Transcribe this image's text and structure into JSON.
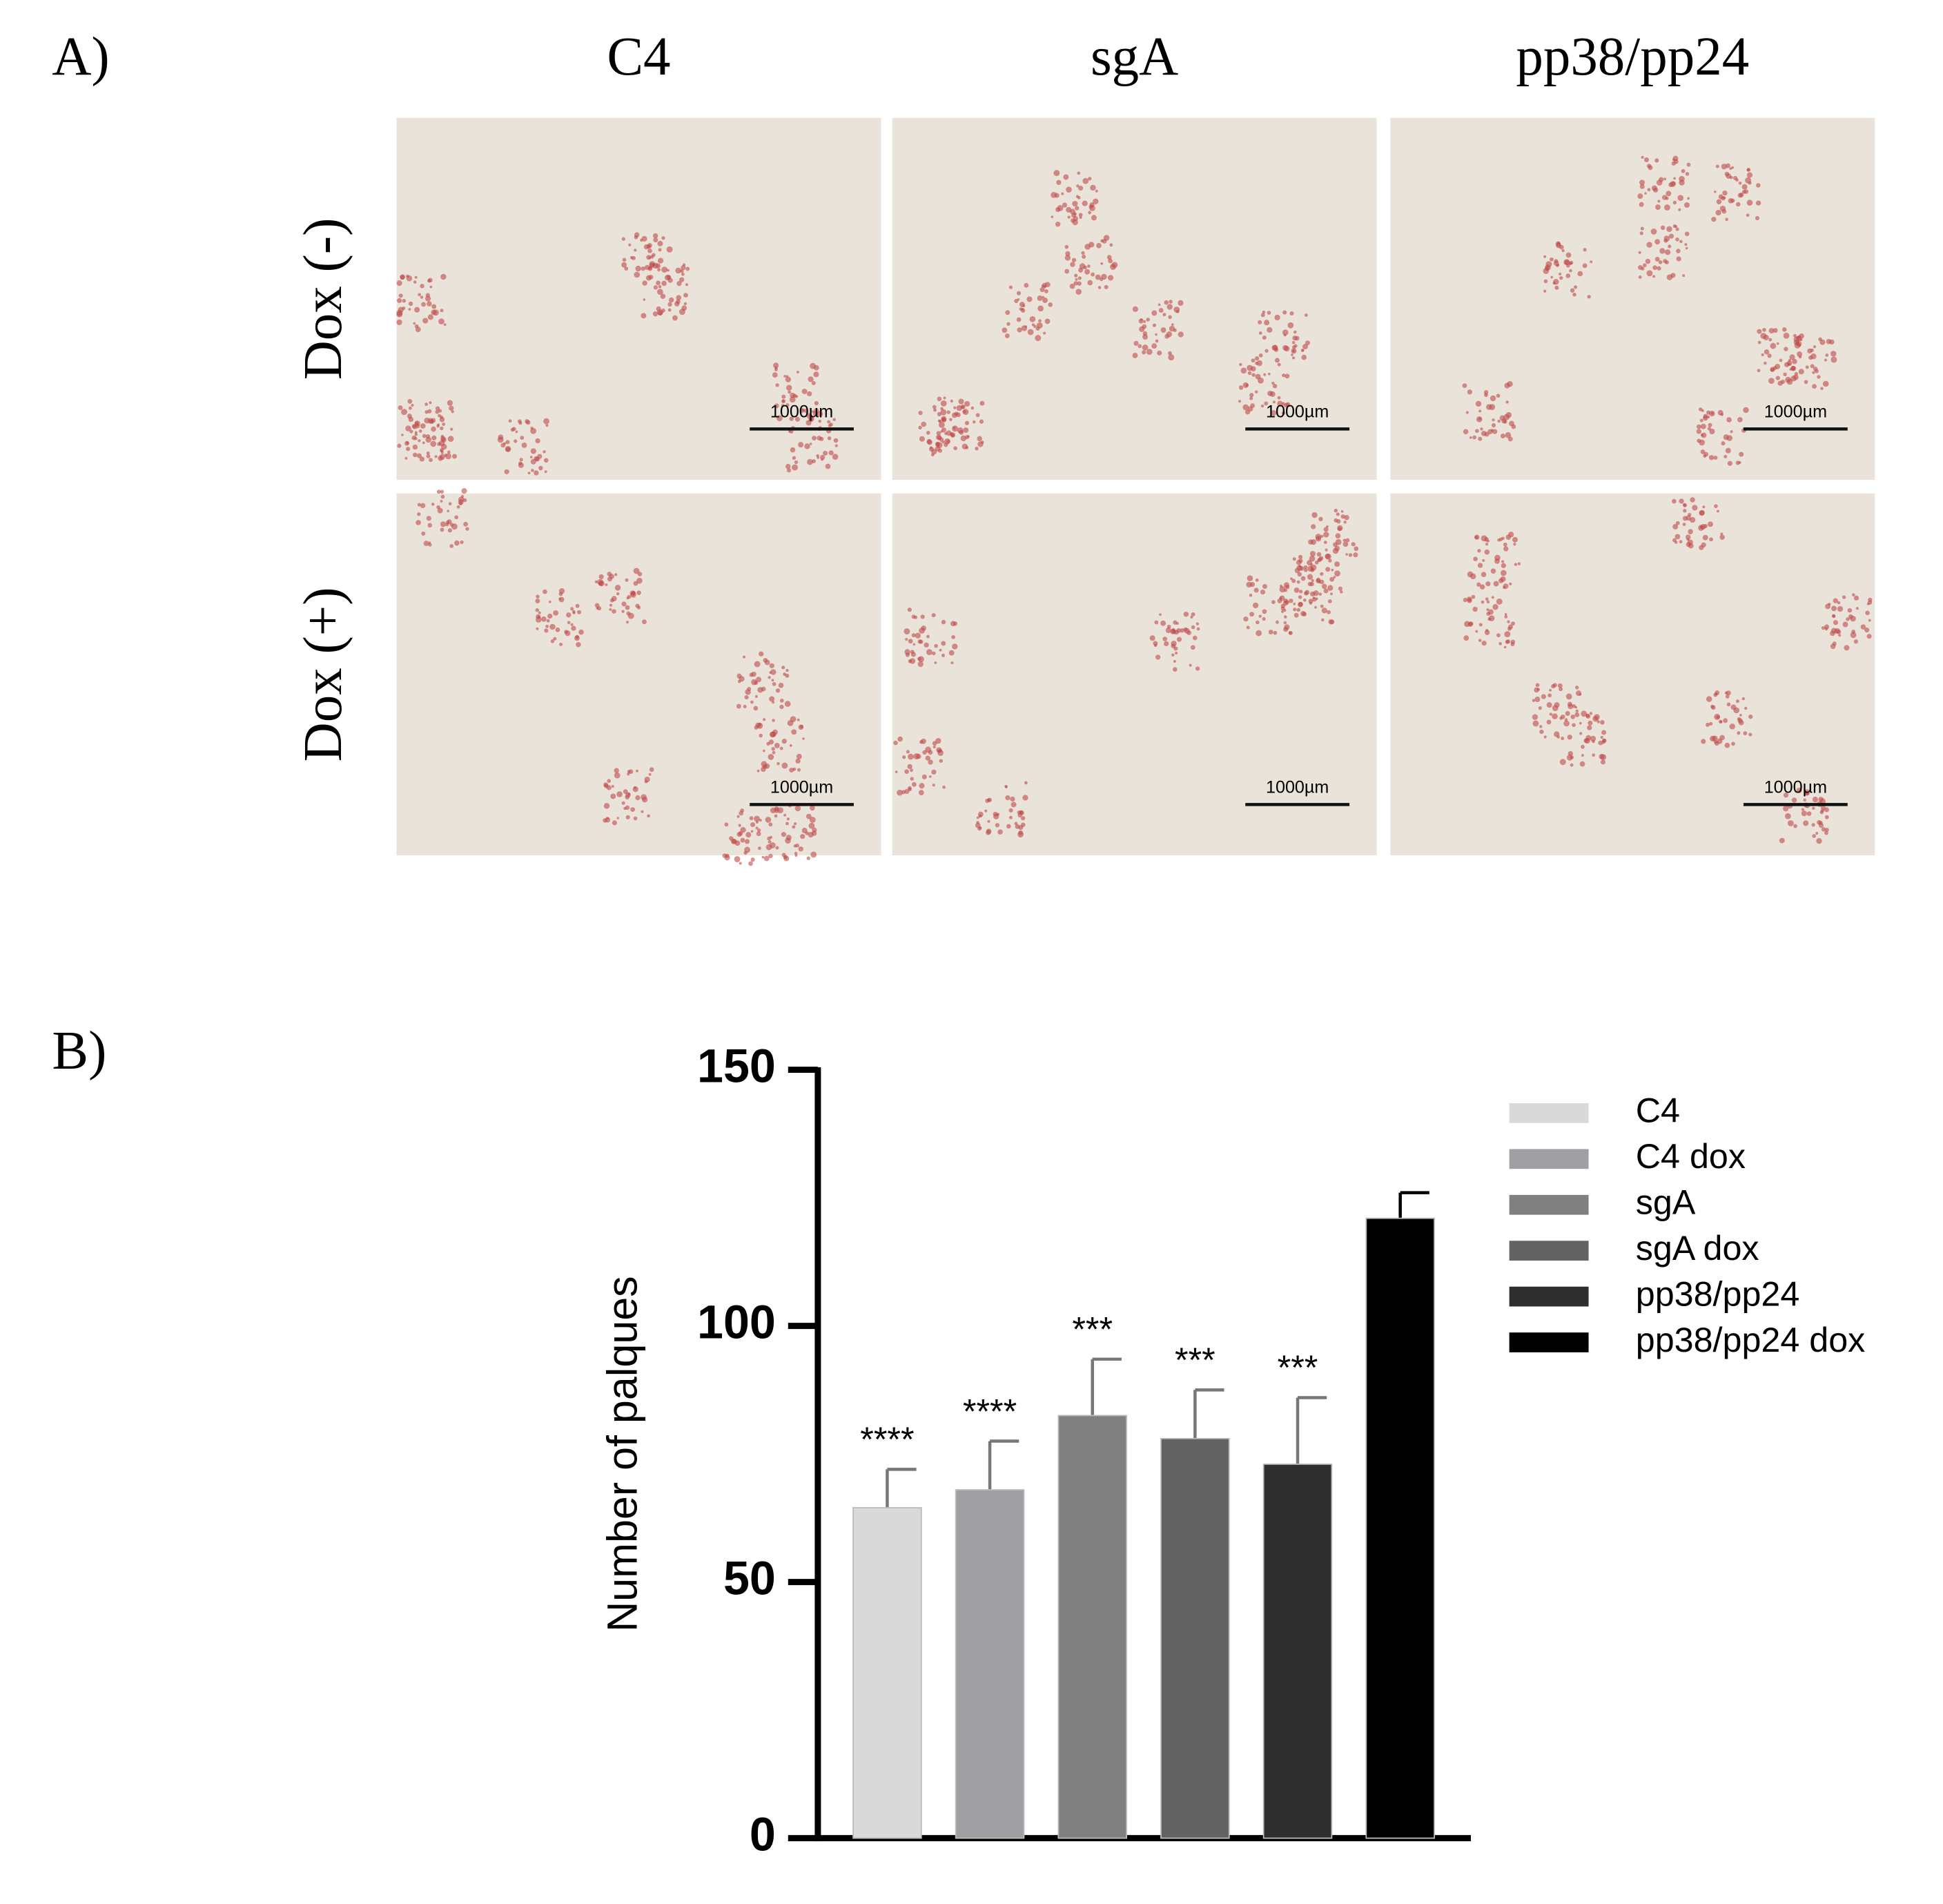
{
  "panel_a": {
    "label": "A)",
    "columns": [
      "C4",
      "sgA",
      "pp38/pp24"
    ],
    "rows": [
      "Dox (-)",
      "Dox (+)"
    ],
    "scale_bars": [
      "1000µm",
      "1000µm",
      "1000µm",
      "1000µm",
      "1000µm",
      "1000µm"
    ]
  },
  "panel_b": {
    "label": "B)"
  },
  "chart_data": {
    "type": "bar",
    "ylabel": "Number of palques",
    "categories": [
      "C4",
      "C4 dox",
      "sgA",
      "sgA dox",
      "pp38/pp24",
      "pp38/pp24 dox"
    ],
    "values": [
      64.5,
      68,
      82.5,
      78,
      73,
      121
    ],
    "errors": [
      7.5,
      9.5,
      11,
      9.5,
      13,
      5
    ],
    "annotations": [
      "****",
      "****",
      "***",
      "***",
      "***",
      null
    ],
    "colors": [
      "#d9d9d9",
      "#a0a0a4",
      "#808080",
      "#626262",
      "#2e2e2e",
      "#000000"
    ],
    "ylim": [
      0,
      150
    ],
    "yticks": [
      0,
      50,
      100,
      150
    ],
    "legend": "right"
  }
}
